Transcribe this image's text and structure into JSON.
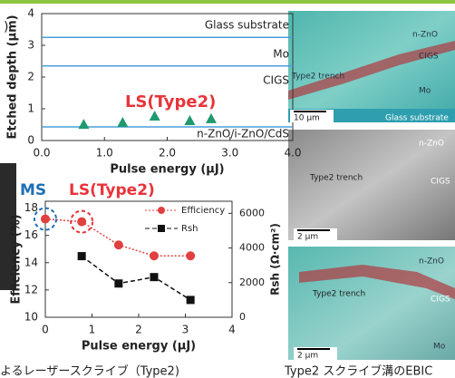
{
  "slide": {
    "panel_label": ")",
    "caption_left": "よるレーザースクライブ（Type2)",
    "caption_right": "Type2 スクライブ溝のEBIC"
  },
  "chart_data": [
    {
      "type": "scatter",
      "ylabel": "Etched depth (μm)",
      "xlabel": "Pulse energy (μJ)",
      "annotation": "LS(Type2)",
      "annotation_color": "#e8333a",
      "xlim": [
        0,
        4
      ],
      "xticks": [
        {
          "value": 0,
          "label": "0.0"
        },
        {
          "value": 1,
          "label": "1.0"
        },
        {
          "value": 2,
          "label": "2.0"
        },
        {
          "value": 3,
          "label": "3.0"
        },
        {
          "value": 4,
          "label": "4.0"
        }
      ],
      "ylim": [
        0,
        4
      ],
      "yticks": [
        0,
        1,
        2,
        3,
        4
      ],
      "series": [
        {
          "color": "#1e9a6e",
          "x": [
            0.67,
            1.29,
            1.8,
            2.36,
            2.7
          ],
          "values": [
            0.51,
            0.57,
            0.77,
            0.63,
            0.69
          ]
        }
      ],
      "layer_color": "#4a9fd8",
      "layers": [
        {
          "label": "Glass substrate",
          "boundary": 3.25
        },
        {
          "label": "Mo",
          "boundary": 2.35
        },
        {
          "label": "CIGS"
        },
        {
          "label": "n-ZnO/i-ZnO/CdS",
          "boundary": 0.43
        }
      ]
    },
    {
      "type": "line",
      "xlabel": "Pulse energy (μJ)",
      "ylabel": "Efficiency (%)",
      "y2label": "Rsh (Ω·cm²)",
      "xlim": [
        0,
        4
      ],
      "xticks": [
        0,
        1,
        2,
        3,
        4
      ],
      "ylim": [
        10,
        18.5
      ],
      "yticks": [
        10,
        12,
        14,
        16,
        18
      ],
      "y2lim": [
        0,
        6700
      ],
      "y2ticks": [
        0,
        2000,
        4000,
        6000
      ],
      "series": [
        {
          "name": "Efficiency",
          "color": "#e04040",
          "marker": "circle",
          "x": [
            0,
            0.78,
            1.57,
            2.33,
            3.11
          ],
          "values": [
            17.2,
            17.0,
            15.3,
            14.5,
            14.5
          ]
        },
        {
          "name": "Rsh",
          "color": "#111111",
          "marker": "square",
          "axis": "y2",
          "x": [
            0.78,
            1.57,
            2.33,
            3.11
          ],
          "values": [
            3530,
            1950,
            2320,
            1000
          ]
        }
      ],
      "annotations": [
        {
          "text": "MS",
          "color": "#1f6fb5"
        },
        {
          "text": "LS(Type2)",
          "color": "#e8333a"
        }
      ]
    }
  ],
  "images": [
    {
      "labels": [
        "n-ZnO",
        "CIGS",
        "Type2 trench",
        "Mo",
        "10 μm",
        "Glass substrate"
      ]
    },
    {
      "labels": [
        "n-ZnO",
        "Type2 trench",
        "CIGS",
        "2 μm"
      ]
    },
    {
      "labels": [
        "n-ZnO",
        "Type2 trench",
        "CIGS",
        "Mo",
        "2 μm"
      ]
    }
  ]
}
